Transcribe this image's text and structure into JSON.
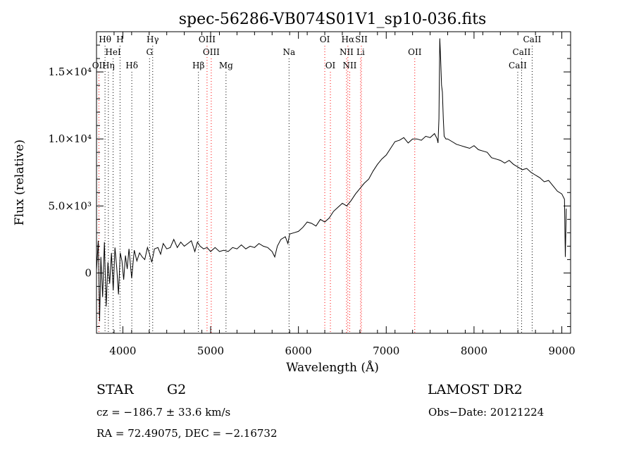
{
  "chart_data": {
    "type": "line",
    "title": "spec-56286-VB074S01V1_sp10-036.fits",
    "xlabel": "Wavelength (Å)",
    "ylabel": "Flux (relative)",
    "xlim": [
      3700,
      9100
    ],
    "ylim": [
      -4500,
      18000
    ],
    "x_ticks": [
      {
        "value": 4000,
        "label": "4000"
      },
      {
        "value": 5000,
        "label": "5000"
      },
      {
        "value": 6000,
        "label": "6000"
      },
      {
        "value": 7000,
        "label": "7000"
      },
      {
        "value": 8000,
        "label": "8000"
      },
      {
        "value": 9000,
        "label": "9000"
      }
    ],
    "y_ticks": [
      {
        "value": 0,
        "label": "0"
      },
      {
        "value": 5000,
        "label": "5.0×10³"
      },
      {
        "value": 10000,
        "label": "1.0×10⁴"
      },
      {
        "value": 15000,
        "label": "1.5×10⁴"
      }
    ],
    "grid": false,
    "legend": "none",
    "colors": {
      "spectrum": "#000000",
      "emission_line": "#ff0000",
      "absorption_line": "#000000"
    },
    "series": [
      {
        "values": [
          [
            3700,
            200
          ],
          [
            3720,
            2400
          ],
          [
            3735,
            -3600
          ],
          [
            3750,
            1200
          ],
          [
            3770,
            -1800
          ],
          [
            3790,
            2300
          ],
          [
            3810,
            -2500
          ],
          [
            3830,
            800
          ],
          [
            3850,
            -800
          ],
          [
            3870,
            1500
          ],
          [
            3890,
            -1300
          ],
          [
            3910,
            1900
          ],
          [
            3930,
            400
          ],
          [
            3950,
            -1600
          ],
          [
            3970,
            1500
          ],
          [
            3990,
            900
          ],
          [
            4010,
            -500
          ],
          [
            4030,
            1300
          ],
          [
            4050,
            300
          ],
          [
            4070,
            1800
          ],
          [
            4100,
            -400
          ],
          [
            4130,
            1700
          ],
          [
            4160,
            900
          ],
          [
            4190,
            1500
          ],
          [
            4220,
            1200
          ],
          [
            4250,
            1000
          ],
          [
            4280,
            1900
          ],
          [
            4300,
            1500
          ],
          [
            4330,
            800
          ],
          [
            4360,
            1800
          ],
          [
            4400,
            1900
          ],
          [
            4430,
            1400
          ],
          [
            4460,
            2200
          ],
          [
            4500,
            1800
          ],
          [
            4540,
            1900
          ],
          [
            4580,
            2500
          ],
          [
            4620,
            1900
          ],
          [
            4660,
            2300
          ],
          [
            4700,
            2000
          ],
          [
            4740,
            2200
          ],
          [
            4780,
            2400
          ],
          [
            4820,
            1600
          ],
          [
            4850,
            2300
          ],
          [
            4880,
            2000
          ],
          [
            4920,
            1800
          ],
          [
            4960,
            1900
          ],
          [
            5000,
            1600
          ],
          [
            5050,
            1900
          ],
          [
            5100,
            1600
          ],
          [
            5150,
            1700
          ],
          [
            5200,
            1600
          ],
          [
            5250,
            1900
          ],
          [
            5300,
            1800
          ],
          [
            5350,
            2100
          ],
          [
            5400,
            1800
          ],
          [
            5450,
            2000
          ],
          [
            5500,
            1900
          ],
          [
            5550,
            2200
          ],
          [
            5600,
            2000
          ],
          [
            5650,
            1900
          ],
          [
            5700,
            1600
          ],
          [
            5730,
            1200
          ],
          [
            5760,
            2000
          ],
          [
            5800,
            2500
          ],
          [
            5850,
            2700
          ],
          [
            5880,
            2200
          ],
          [
            5900,
            2900
          ],
          [
            5950,
            3000
          ],
          [
            6000,
            3100
          ],
          [
            6050,
            3400
          ],
          [
            6100,
            3800
          ],
          [
            6150,
            3700
          ],
          [
            6200,
            3500
          ],
          [
            6250,
            4000
          ],
          [
            6300,
            3800
          ],
          [
            6350,
            4100
          ],
          [
            6400,
            4600
          ],
          [
            6450,
            4900
          ],
          [
            6500,
            5200
          ],
          [
            6550,
            5000
          ],
          [
            6600,
            5400
          ],
          [
            6650,
            5900
          ],
          [
            6700,
            6300
          ],
          [
            6750,
            6700
          ],
          [
            6800,
            7000
          ],
          [
            6850,
            7600
          ],
          [
            6900,
            8100
          ],
          [
            6950,
            8500
          ],
          [
            7000,
            8800
          ],
          [
            7050,
            9300
          ],
          [
            7100,
            9800
          ],
          [
            7150,
            9900
          ],
          [
            7200,
            10100
          ],
          [
            7250,
            9700
          ],
          [
            7300,
            10000
          ],
          [
            7350,
            10000
          ],
          [
            7400,
            9900
          ],
          [
            7450,
            10200
          ],
          [
            7500,
            10100
          ],
          [
            7550,
            10400
          ],
          [
            7580,
            10000
          ],
          [
            7590,
            9700
          ],
          [
            7600,
            11500
          ],
          [
            7610,
            17500
          ],
          [
            7620,
            16000
          ],
          [
            7630,
            14000
          ],
          [
            7640,
            13500
          ],
          [
            7650,
            11500
          ],
          [
            7660,
            10200
          ],
          [
            7680,
            10000
          ],
          [
            7700,
            10000
          ],
          [
            7750,
            9800
          ],
          [
            7800,
            9600
          ],
          [
            7850,
            9500
          ],
          [
            7900,
            9400
          ],
          [
            7950,
            9300
          ],
          [
            8000,
            9500
          ],
          [
            8050,
            9200
          ],
          [
            8100,
            9100
          ],
          [
            8150,
            9000
          ],
          [
            8200,
            8600
          ],
          [
            8250,
            8500
          ],
          [
            8300,
            8400
          ],
          [
            8350,
            8200
          ],
          [
            8400,
            8400
          ],
          [
            8450,
            8100
          ],
          [
            8500,
            7900
          ],
          [
            8550,
            7700
          ],
          [
            8600,
            7800
          ],
          [
            8650,
            7500
          ],
          [
            8700,
            7300
          ],
          [
            8750,
            7100
          ],
          [
            8800,
            6800
          ],
          [
            8850,
            6900
          ],
          [
            8900,
            6500
          ],
          [
            8950,
            6100
          ],
          [
            9000,
            5900
          ],
          [
            9030,
            5500
          ],
          [
            9040,
            1200
          ],
          [
            9050,
            4800
          ]
        ]
      }
    ],
    "line_markers": [
      {
        "label": "Hθ",
        "wavelength": 3797,
        "row": 0,
        "kind": "absorption"
      },
      {
        "label": "H",
        "wavelength": 3968,
        "row": 0,
        "kind": "absorption"
      },
      {
        "label": "Hγ",
        "wavelength": 4340,
        "row": 0,
        "kind": "absorption"
      },
      {
        "label": "OIII",
        "wavelength": 4959,
        "row": 0,
        "kind": "emission"
      },
      {
        "label": "OI",
        "wavelength": 6300,
        "row": 0,
        "kind": "emission"
      },
      {
        "label": "Hα",
        "wavelength": 6563,
        "row": 0,
        "kind": "emission"
      },
      {
        "label": "SII",
        "wavelength": 6717,
        "row": 0,
        "kind": "emission"
      },
      {
        "label": "CaII",
        "wavelength": 8662,
        "row": 0,
        "kind": "absorption"
      },
      {
        "label": "HeI",
        "wavelength": 3889,
        "row": 1,
        "kind": "absorption"
      },
      {
        "label": "G",
        "wavelength": 4304,
        "row": 1,
        "kind": "absorption"
      },
      {
        "label": "OIII",
        "wavelength": 5007,
        "row": 1,
        "kind": "emission"
      },
      {
        "label": "Na",
        "wavelength": 5893,
        "row": 1,
        "kind": "absorption"
      },
      {
        "label": "NII",
        "wavelength": 6548,
        "row": 1,
        "kind": "emission"
      },
      {
        "label": "Li",
        "wavelength": 6708,
        "row": 1,
        "kind": "emission"
      },
      {
        "label": "OII",
        "wavelength": 7325,
        "row": 1,
        "kind": "emission"
      },
      {
        "label": "CaII",
        "wavelength": 8542,
        "row": 1,
        "kind": "absorption"
      },
      {
        "label": "OII",
        "wavelength": 3727,
        "row": 2,
        "kind": "emission"
      },
      {
        "label": "Hη",
        "wavelength": 3835,
        "row": 2,
        "kind": "absorption"
      },
      {
        "label": "Hδ",
        "wavelength": 4102,
        "row": 2,
        "kind": "absorption"
      },
      {
        "label": "Hβ",
        "wavelength": 4861,
        "row": 2,
        "kind": "absorption"
      },
      {
        "label": "Mg",
        "wavelength": 5175,
        "row": 2,
        "kind": "absorption"
      },
      {
        "label": "OI",
        "wavelength": 6364,
        "row": 2,
        "kind": "emission"
      },
      {
        "label": "NII",
        "wavelength": 6584,
        "row": 2,
        "kind": "emission"
      },
      {
        "label": "CaII",
        "wavelength": 8498,
        "row": 2,
        "kind": "absorption"
      }
    ]
  },
  "info": {
    "object_type": "STAR",
    "subclass": "G2",
    "survey": "LAMOST DR2",
    "redshift": "cz = −186.7 ± 33.6 km/s",
    "obs_date": "Obs−Date: 20121224",
    "coordinates": "RA =  72.49075, DEC =  −2.16732"
  }
}
